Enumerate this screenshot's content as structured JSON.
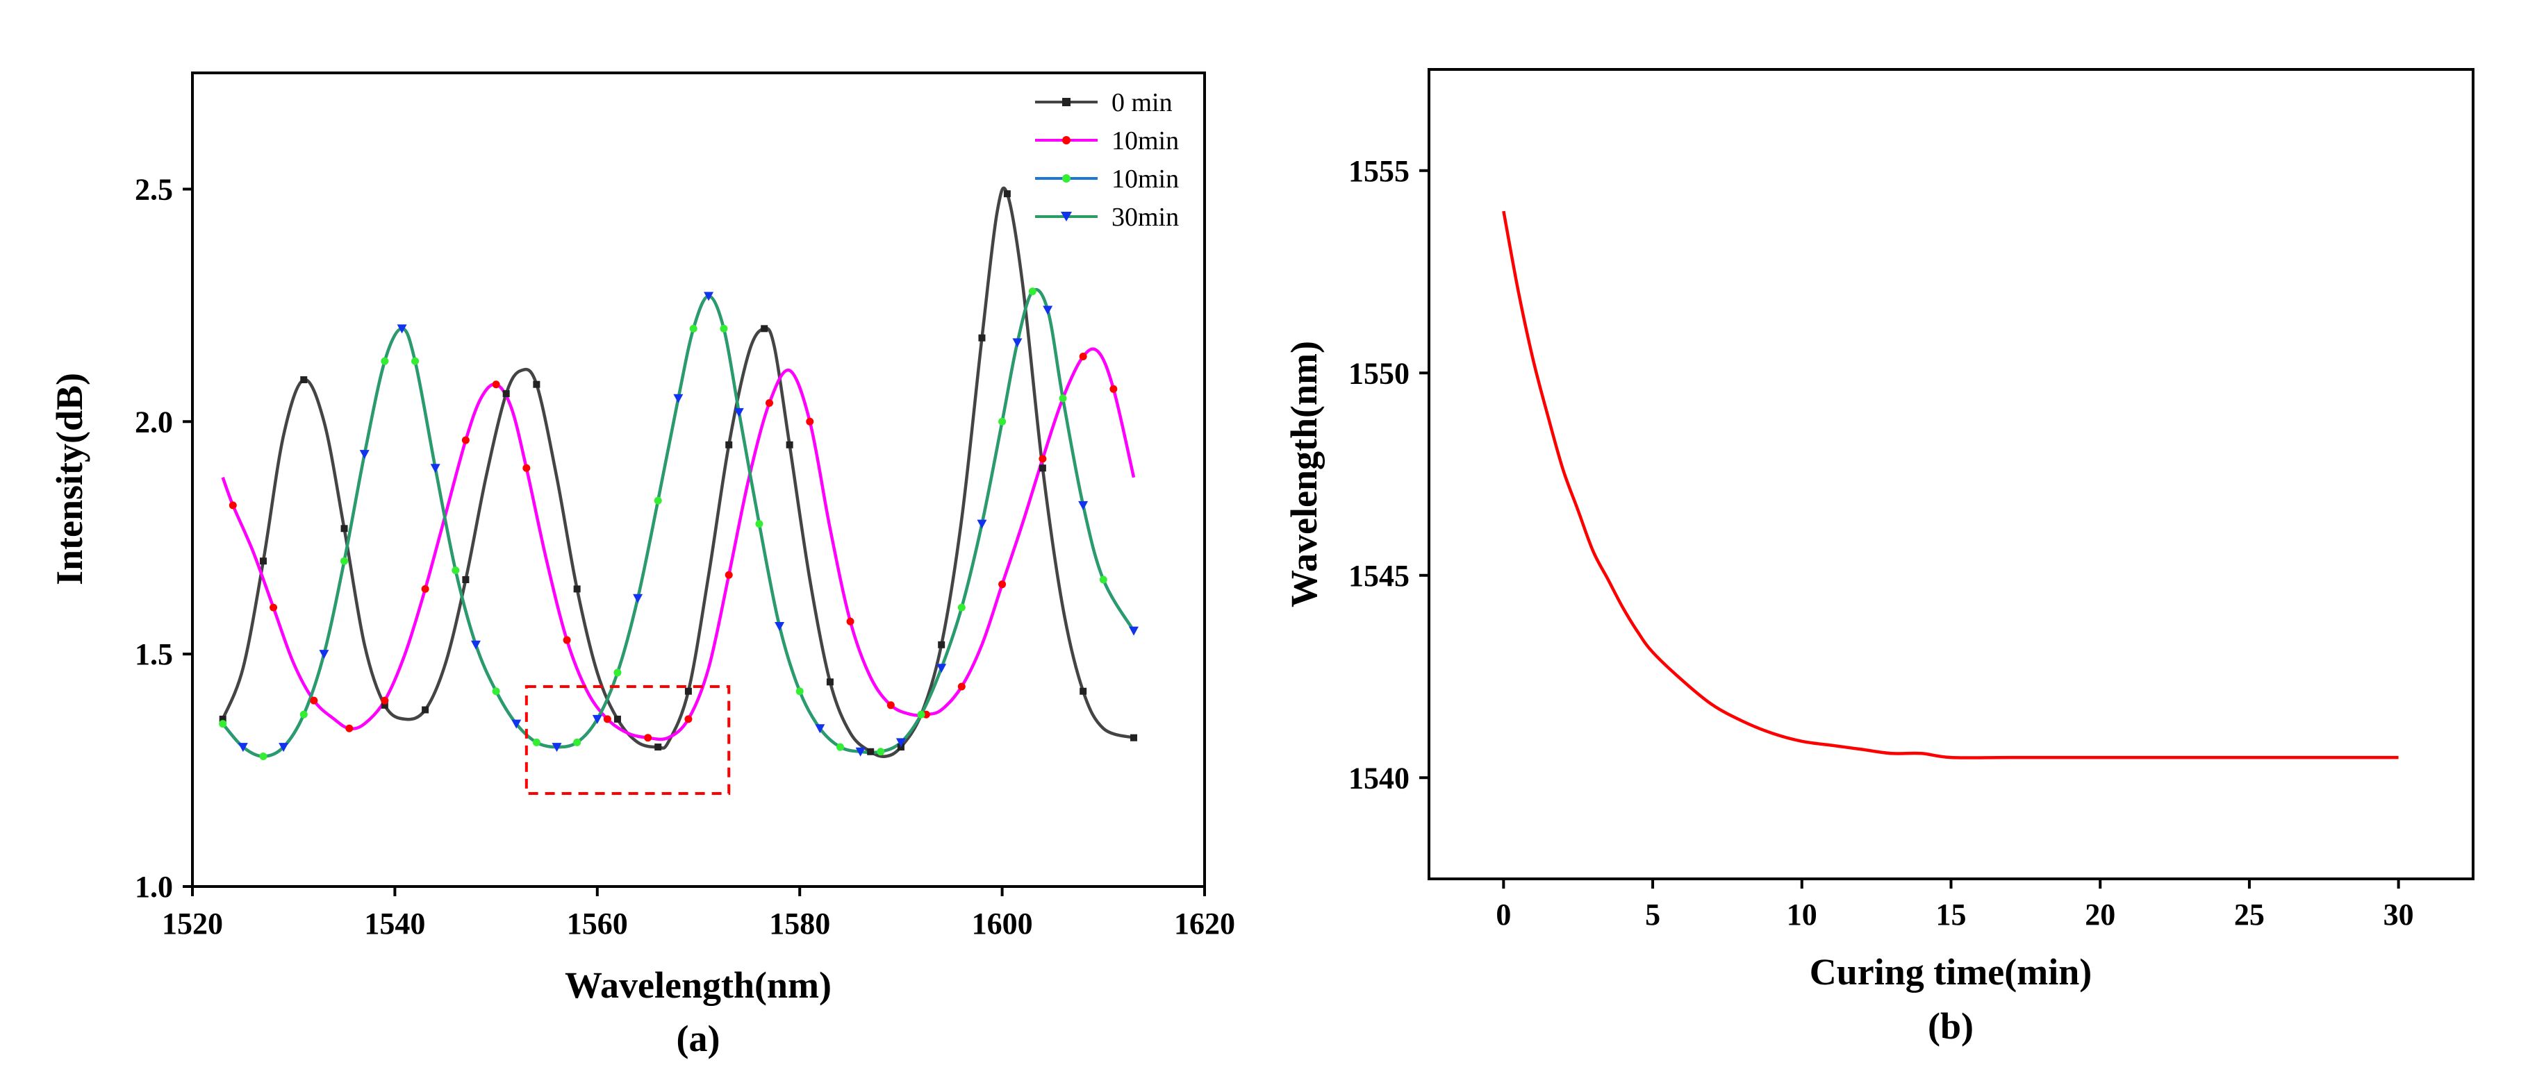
{
  "chart_data": [
    {
      "type": "line",
      "panel_label": "(a)",
      "xlabel": "Wavelength(nm)",
      "ylabel": "Intensity(dB)",
      "xlim": [
        1520,
        1620
      ],
      "ylim": [
        1.0,
        2.75
      ],
      "xticks": [
        1520,
        1540,
        1560,
        1580,
        1600,
        1620
      ],
      "xtick_labels": [
        "1520",
        "1540",
        "1560",
        "1580",
        "1600",
        "1620"
      ],
      "yticks": [
        1.0,
        1.5,
        2.0,
        2.5
      ],
      "ytick_labels": [
        "1.0",
        "1.5",
        "2.0",
        "2.5"
      ],
      "legend_position": "top-right",
      "annotation": "dashed red rectangle highlighting wavelength 1553-1573 nm, intensity 1.2-1.43 dB",
      "annotation_box": {
        "x": [
          1553,
          1573
        ],
        "y": [
          1.2,
          1.43
        ],
        "color": "#ff0000"
      },
      "series": [
        {
          "name": "0 min",
          "color": "#444444",
          "marker": "square",
          "x": [
            1523,
            1525,
            1527,
            1529,
            1531,
            1533,
            1535,
            1537,
            1539,
            1541,
            1543,
            1545,
            1547,
            1549,
            1551,
            1552.5,
            1554,
            1556,
            1558,
            1560,
            1562,
            1564,
            1566,
            1567,
            1569,
            1571,
            1573,
            1575,
            1576.5,
            1577.5,
            1579,
            1581,
            1583,
            1585,
            1587,
            1588.5,
            1590,
            1592,
            1594,
            1596,
            1598,
            1599.5,
            1600.5,
            1602,
            1604,
            1606,
            1608,
            1610,
            1613
          ],
          "y": [
            1.36,
            1.47,
            1.7,
            1.97,
            2.09,
            2.0,
            1.77,
            1.52,
            1.39,
            1.36,
            1.38,
            1.48,
            1.66,
            1.88,
            2.06,
            2.11,
            2.08,
            1.88,
            1.64,
            1.46,
            1.36,
            1.31,
            1.3,
            1.31,
            1.42,
            1.67,
            1.95,
            2.15,
            2.2,
            2.16,
            1.95,
            1.66,
            1.44,
            1.33,
            1.29,
            1.28,
            1.3,
            1.37,
            1.52,
            1.79,
            2.18,
            2.45,
            2.49,
            2.3,
            1.9,
            1.6,
            1.42,
            1.34,
            1.32
          ]
        },
        {
          "name": "10min",
          "color": "#ff00ff",
          "marker": "dot",
          "x": [
            1523,
            1524,
            1526,
            1528,
            1530,
            1532,
            1534,
            1535.5,
            1537,
            1539,
            1541,
            1543,
            1545,
            1547,
            1548.5,
            1550,
            1551.5,
            1553,
            1555,
            1557,
            1559,
            1561,
            1563,
            1565,
            1567,
            1569,
            1571,
            1573,
            1575,
            1577,
            1579,
            1581,
            1583,
            1585,
            1587,
            1589,
            1591,
            1592.5,
            1594,
            1596,
            1598,
            1600,
            1602,
            1604,
            1606,
            1608,
            1609.5,
            1611,
            1613
          ],
          "y": [
            1.88,
            1.82,
            1.72,
            1.6,
            1.48,
            1.4,
            1.36,
            1.34,
            1.35,
            1.4,
            1.5,
            1.64,
            1.8,
            1.96,
            2.05,
            2.08,
            2.03,
            1.9,
            1.7,
            1.53,
            1.42,
            1.36,
            1.33,
            1.32,
            1.32,
            1.36,
            1.47,
            1.67,
            1.88,
            2.04,
            2.11,
            2.0,
            1.77,
            1.57,
            1.45,
            1.39,
            1.37,
            1.37,
            1.38,
            1.43,
            1.52,
            1.65,
            1.78,
            1.92,
            2.05,
            2.14,
            2.15,
            2.07,
            1.88
          ]
        },
        {
          "name": "10min",
          "color": "#1f77d4",
          "marker": "circle",
          "x": [
            1523,
            1525,
            1527,
            1529,
            1531,
            1533,
            1535,
            1537,
            1539,
            1540.7,
            1542,
            1544,
            1546,
            1548,
            1550,
            1552,
            1554,
            1556,
            1558,
            1560,
            1562,
            1564,
            1566,
            1568,
            1569.5,
            1571,
            1572.5,
            1574,
            1576,
            1578,
            1580,
            1582,
            1584,
            1586,
            1588,
            1590,
            1592,
            1594,
            1596,
            1598,
            1600,
            1601.5,
            1603,
            1604.5,
            1606,
            1608,
            1610,
            1613
          ],
          "y": [
            1.35,
            1.3,
            1.28,
            1.3,
            1.37,
            1.5,
            1.7,
            1.93,
            2.13,
            2.2,
            2.13,
            1.9,
            1.68,
            1.52,
            1.42,
            1.35,
            1.31,
            1.3,
            1.31,
            1.36,
            1.46,
            1.62,
            1.83,
            2.05,
            2.2,
            2.27,
            2.2,
            2.02,
            1.78,
            1.56,
            1.42,
            1.34,
            1.3,
            1.29,
            1.29,
            1.31,
            1.37,
            1.47,
            1.6,
            1.78,
            2.0,
            2.17,
            2.28,
            2.24,
            2.05,
            1.82,
            1.66,
            1.55
          ]
        },
        {
          "name": "30min",
          "color": "#2a9d62",
          "marker": "triangle-down",
          "x": [
            1523,
            1525,
            1527,
            1529,
            1531,
            1533,
            1535,
            1537,
            1539,
            1540.7,
            1542,
            1544,
            1546,
            1548,
            1550,
            1552,
            1554,
            1556,
            1558,
            1560,
            1562,
            1564,
            1566,
            1568,
            1569.5,
            1571,
            1572.5,
            1574,
            1576,
            1578,
            1580,
            1582,
            1584,
            1586,
            1588,
            1590,
            1592,
            1594,
            1596,
            1598,
            1600,
            1601.5,
            1603,
            1604.5,
            1606,
            1608,
            1610,
            1613
          ],
          "y": [
            1.35,
            1.3,
            1.28,
            1.3,
            1.37,
            1.5,
            1.7,
            1.93,
            2.13,
            2.2,
            2.13,
            1.9,
            1.68,
            1.52,
            1.42,
            1.35,
            1.31,
            1.3,
            1.31,
            1.36,
            1.46,
            1.62,
            1.83,
            2.05,
            2.2,
            2.27,
            2.2,
            2.02,
            1.78,
            1.56,
            1.42,
            1.34,
            1.3,
            1.29,
            1.29,
            1.31,
            1.37,
            1.47,
            1.6,
            1.78,
            2.0,
            2.17,
            2.28,
            2.24,
            2.05,
            1.82,
            1.66,
            1.55
          ]
        }
      ]
    },
    {
      "type": "line",
      "panel_label": "(b)",
      "xlabel": "Curing time(min)",
      "ylabel": "Wavelength(nm)",
      "xlim": [
        -2.5,
        32.5
      ],
      "ylim": [
        1537.5,
        1557.5
      ],
      "xticks": [
        0,
        5,
        10,
        15,
        20,
        25,
        30
      ],
      "xtick_labels": [
        "0",
        "5",
        "10",
        "15",
        "20",
        "25",
        "30"
      ],
      "yticks": [
        1540,
        1545,
        1550,
        1555
      ],
      "ytick_labels": [
        "1540",
        "1545",
        "1550",
        "1555"
      ],
      "series": [
        {
          "name": "Wavelength",
          "color": "#ff0000",
          "x": [
            0,
            0.5,
            1,
            1.5,
            2,
            2.5,
            3,
            3.5,
            4,
            4.5,
            5,
            6,
            7,
            8,
            9,
            10,
            11,
            12,
            13,
            14,
            15,
            17,
            20,
            25,
            30
          ],
          "y": [
            1554,
            1552.0,
            1550.3,
            1548.9,
            1547.6,
            1546.6,
            1545.6,
            1544.9,
            1544.2,
            1543.6,
            1543.1,
            1542.4,
            1541.8,
            1541.4,
            1541.1,
            1540.9,
            1540.8,
            1540.7,
            1540.6,
            1540.6,
            1540.5,
            1540.5,
            1540.5,
            1540.5,
            1540.5
          ]
        }
      ]
    }
  ]
}
